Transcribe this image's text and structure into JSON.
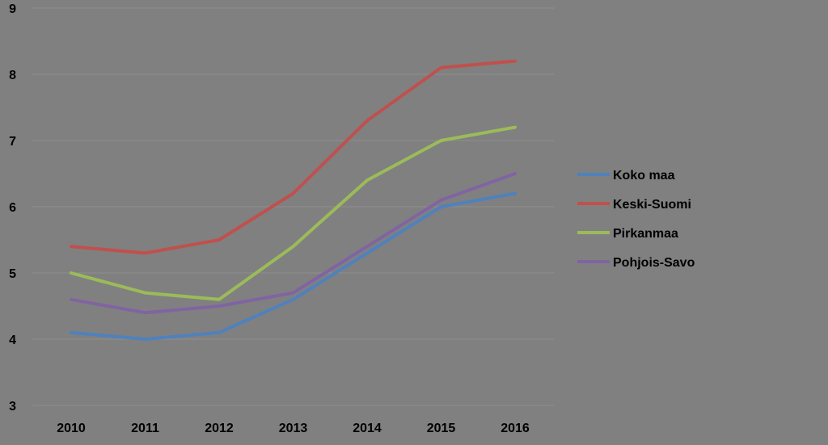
{
  "chart_data": {
    "type": "line",
    "title": "",
    "xlabel": "",
    "ylabel": "",
    "categories": [
      "2010",
      "2011",
      "2012",
      "2013",
      "2014",
      "2015",
      "2016"
    ],
    "ylim": [
      3,
      9
    ],
    "yticks": [
      3,
      4,
      5,
      6,
      7,
      8,
      9
    ],
    "grid": true,
    "legend_position": "right",
    "series": [
      {
        "name": "Koko maa",
        "color": "#4f81bd",
        "values": [
          4.1,
          4.0,
          4.1,
          4.6,
          5.3,
          6.0,
          6.2
        ]
      },
      {
        "name": "Keski-Suomi",
        "color": "#c0504d",
        "values": [
          5.4,
          5.3,
          5.5,
          6.2,
          7.3,
          8.1,
          8.2
        ]
      },
      {
        "name": "Pirkanmaa",
        "color": "#9bbb59",
        "values": [
          5.0,
          4.7,
          4.6,
          5.4,
          6.4,
          7.0,
          7.2
        ]
      },
      {
        "name": "Pohjois-Savo",
        "color": "#8064a2",
        "values": [
          4.6,
          4.4,
          4.5,
          4.7,
          5.4,
          6.1,
          6.5
        ]
      }
    ]
  }
}
